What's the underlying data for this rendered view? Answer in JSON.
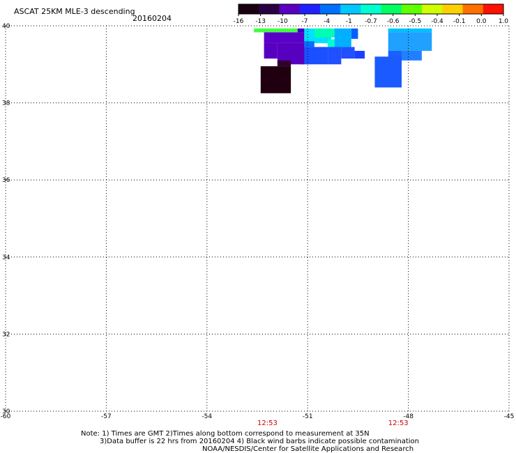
{
  "chart_data": {
    "type": "heatmap",
    "title": "ASCAT 25KM MLE-3 descending",
    "date": "20160204",
    "x_ticks": [
      -60,
      -57,
      -54,
      -51,
      -48,
      -45
    ],
    "y_ticks": [
      30,
      32,
      34,
      36,
      38,
      40
    ],
    "x_tick_labels": [
      "-60",
      "-57",
      "-54",
      "-51",
      "-48",
      "-45"
    ],
    "y_tick_labels": [
      "30",
      "32",
      "34",
      "36",
      "38",
      "40"
    ],
    "xlim": [
      -60,
      -45
    ],
    "ylim": [
      30,
      40
    ],
    "grid": true,
    "time_labels": [
      {
        "lon": -52.2,
        "text": "12:53"
      },
      {
        "lon": -48.3,
        "text": "12:53"
      }
    ],
    "colorbar": {
      "labels": [
        "-16",
        "-13",
        "-10",
        "-7",
        "-4",
        "-1",
        "-0.7",
        "-0.6",
        "-0.5",
        "-0.4",
        "-0.1",
        "0.0",
        "1.0"
      ],
      "colors": [
        "#1a0010",
        "#2a0040",
        "#5a00c0",
        "#2020ff",
        "#0070ff",
        "#00c8ff",
        "#00ffd0",
        "#00ff60",
        "#60ff00",
        "#d0ff00",
        "#ffd000",
        "#ff7000",
        "#ff1000"
      ]
    },
    "cells": [
      {
        "lon0": -52.6,
        "lon1": -51.3,
        "lat0": 39.83,
        "lat1": 39.93,
        "color": "#40ff40"
      },
      {
        "lon0": -51.3,
        "lon1": -51.1,
        "lat0": 39.83,
        "lat1": 39.93,
        "color": "#3c00c8"
      },
      {
        "lon0": -52.3,
        "lon1": -51.1,
        "lat0": 39.55,
        "lat1": 39.83,
        "color": "#5a00c8"
      },
      {
        "lon0": -51.1,
        "lon1": -50.3,
        "lat0": 39.55,
        "lat1": 39.93,
        "color": "#00e0ff"
      },
      {
        "lon0": -50.8,
        "lon1": -49.9,
        "lat0": 39.7,
        "lat1": 39.93,
        "color": "#00ffb0"
      },
      {
        "lon0": -50.4,
        "lon1": -50.0,
        "lat0": 39.45,
        "lat1": 39.65,
        "color": "#00ffd0"
      },
      {
        "lon0": -51.1,
        "lon1": -50.8,
        "lat0": 39.45,
        "lat1": 39.6,
        "color": "#0070ff"
      },
      {
        "lon0": -49.7,
        "lon1": -49.5,
        "lat0": 39.66,
        "lat1": 39.93,
        "color": "#0060ff"
      },
      {
        "lon0": -50.2,
        "lon1": -49.7,
        "lat0": 39.45,
        "lat1": 39.93,
        "color": "#00b0ff"
      },
      {
        "lon0": -50.0,
        "lon1": -49.6,
        "lat0": 39.15,
        "lat1": 39.45,
        "color": "#2050ff"
      },
      {
        "lon0": -50.4,
        "lon1": -50.0,
        "lat0": 39.0,
        "lat1": 39.45,
        "color": "#2050ff"
      },
      {
        "lon0": -51.2,
        "lon1": -50.4,
        "lat0": 39.0,
        "lat1": 39.45,
        "color": "#1a50ff"
      },
      {
        "lon0": -49.6,
        "lon1": -49.3,
        "lat0": 39.15,
        "lat1": 39.35,
        "color": "#1a40ff"
      },
      {
        "lon0": -51.9,
        "lon1": -51.1,
        "lat0": 39.0,
        "lat1": 39.55,
        "color": "#5800c0"
      },
      {
        "lon0": -52.3,
        "lon1": -51.9,
        "lat0": 39.15,
        "lat1": 39.55,
        "color": "#5800c0"
      },
      {
        "lon0": -51.9,
        "lon1": -51.5,
        "lat0": 38.95,
        "lat1": 39.1,
        "color": "#300030"
      },
      {
        "lon0": -52.4,
        "lon1": -51.5,
        "lat0": 38.25,
        "lat1": 38.95,
        "color": "#200010"
      },
      {
        "lon0": -48.6,
        "lon1": -47.3,
        "lat0": 39.83,
        "lat1": 39.93,
        "color": "#00c0ff"
      },
      {
        "lon0": -48.6,
        "lon1": -47.3,
        "lat0": 39.35,
        "lat1": 39.83,
        "color": "#20a0ff"
      },
      {
        "lon0": -48.2,
        "lon1": -47.6,
        "lat0": 39.1,
        "lat1": 39.35,
        "color": "#2080ff"
      },
      {
        "lon0": -48.6,
        "lon1": -48.2,
        "lat0": 39.0,
        "lat1": 39.35,
        "color": "#1a60ff"
      },
      {
        "lon0": -49.0,
        "lon1": -48.2,
        "lat0": 38.4,
        "lat1": 39.2,
        "color": "#1a5aff"
      }
    ],
    "notes": [
      "Note: 1) Times are GMT 2)Times along bottom correspond to measurement at 35N",
      "3)Data buffer is 22 hrs from 20160204 4) Black wind barbs indicate possible contamination",
      "NOAA/NESDIS/Center for Satellite Applications and Research"
    ]
  }
}
